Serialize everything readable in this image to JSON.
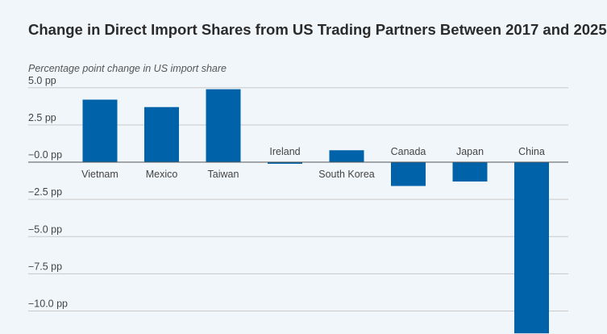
{
  "chart_data": {
    "type": "bar",
    "title": "Change in Direct Import Shares from US Trading Partners Between 2017 and 2025",
    "ylabel": "Percentage point change in US import share",
    "xlabel": "",
    "categories": [
      "Vietnam",
      "Mexico",
      "Taiwan",
      "Ireland",
      "South Korea",
      "Canada",
      "Japan",
      "China"
    ],
    "values": [
      4.2,
      3.7,
      4.9,
      -0.1,
      0.8,
      -1.6,
      -1.3,
      -11.5
    ],
    "ylim": [
      -11.5,
      5.0
    ],
    "yticks": [
      5.0,
      2.5,
      0.0,
      -2.5,
      -5.0,
      -7.5,
      -10.0
    ],
    "ytick_labels": [
      "5.0 pp",
      "2.5 pp",
      "−0.0 pp",
      "−2.5 pp",
      "−5.0 pp",
      "−7.5 pp",
      "−10.0 pp"
    ],
    "grid": true,
    "legend": "none",
    "colors": {
      "bar": "#0062a8",
      "grid": "#c9c9c9",
      "zero_line": "#555555",
      "background": "#f1f6fa"
    }
  }
}
